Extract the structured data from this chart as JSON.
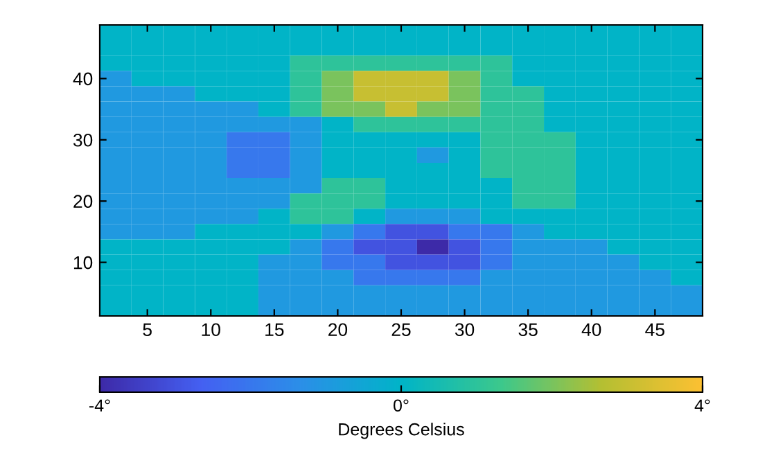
{
  "chart_data": {
    "type": "heatmap",
    "clabel": "Degrees Celsius",
    "categories": [
      null,
      "5",
      null,
      "10",
      null,
      "15",
      null,
      "20",
      null,
      "25",
      null,
      "30",
      null,
      "35",
      null,
      "40",
      null,
      "45",
      null
    ],
    "y_categories": [
      null,
      null,
      null,
      "40",
      null,
      null,
      null,
      "30",
      null,
      null,
      null,
      "20",
      null,
      null,
      null,
      "10",
      null,
      null,
      null
    ],
    "clim": [
      -4,
      4
    ],
    "cticks": [
      {
        "value": -4,
        "label": "-4°"
      },
      {
        "value": 0,
        "label": "0°"
      },
      {
        "value": 4,
        "label": "4°"
      }
    ],
    "cells": [
      [
        0,
        0,
        0,
        0,
        0,
        0,
        0,
        0,
        0,
        0,
        0,
        0,
        0,
        0,
        0,
        0,
        0,
        0,
        0
      ],
      [
        0,
        0,
        0,
        0,
        0,
        0,
        0,
        0,
        0,
        0,
        0,
        0,
        0,
        0,
        0,
        0,
        0,
        0,
        0
      ],
      [
        0,
        0,
        0,
        0,
        0,
        0,
        1,
        1,
        1,
        1,
        1,
        1,
        1,
        0,
        0,
        0,
        0,
        0,
        0
      ],
      [
        -1,
        0,
        0,
        0,
        0,
        0,
        1,
        2,
        3,
        3,
        3,
        2,
        1,
        0,
        0,
        0,
        0,
        0,
        0
      ],
      [
        -1,
        -1,
        -1,
        0,
        0,
        0,
        1,
        2,
        3,
        3,
        3,
        2,
        1,
        1,
        0,
        0,
        0,
        0,
        0
      ],
      [
        -1,
        -1,
        -1,
        -1,
        -1,
        0,
        1,
        2,
        2,
        3,
        2,
        2,
        1,
        1,
        0,
        0,
        0,
        0,
        0
      ],
      [
        -1,
        -1,
        -1,
        -1,
        -1,
        -1,
        -1,
        0,
        1,
        1,
        1,
        1,
        1,
        1,
        0,
        0,
        0,
        0,
        0
      ],
      [
        -1,
        -1,
        -1,
        -1,
        -2,
        -2,
        -1,
        0,
        0,
        0,
        0,
        0,
        1,
        1,
        1,
        0,
        0,
        0,
        0
      ],
      [
        -1,
        -1,
        -1,
        -1,
        -2,
        -2,
        -1,
        0,
        0,
        0,
        -1,
        0,
        1,
        1,
        1,
        0,
        0,
        0,
        0
      ],
      [
        -1,
        -1,
        -1,
        -1,
        -2,
        -2,
        -1,
        0,
        0,
        0,
        0,
        0,
        1,
        1,
        1,
        0,
        0,
        0,
        0
      ],
      [
        -1,
        -1,
        -1,
        -1,
        -1,
        -1,
        -1,
        1,
        1,
        0,
        0,
        0,
        0,
        1,
        1,
        0,
        0,
        0,
        0
      ],
      [
        -1,
        -1,
        -1,
        -1,
        -1,
        -1,
        1,
        1,
        1,
        0,
        0,
        0,
        0,
        1,
        1,
        0,
        0,
        0,
        0
      ],
      [
        -1,
        -1,
        -1,
        -1,
        -1,
        0,
        1,
        1,
        0,
        -1,
        -1,
        -1,
        0,
        0,
        0,
        0,
        0,
        0,
        0
      ],
      [
        -1,
        -1,
        -1,
        0,
        0,
        0,
        0,
        -1,
        -2,
        -3,
        -3,
        -2,
        -2,
        -1,
        0,
        0,
        0,
        0,
        0
      ],
      [
        0,
        0,
        0,
        0,
        0,
        0,
        -1,
        -2,
        -3,
        -3,
        -4,
        -3,
        -2,
        -1,
        -1,
        -1,
        0,
        0,
        0
      ],
      [
        0,
        0,
        0,
        0,
        0,
        -1,
        -1,
        -2,
        -2,
        -3,
        -3,
        -3,
        -2,
        -1,
        -1,
        -1,
        -1,
        0,
        0
      ],
      [
        0,
        0,
        0,
        0,
        0,
        -1,
        -1,
        -1,
        -2,
        -2,
        -2,
        -2,
        -1,
        -1,
        -1,
        -1,
        -1,
        -1,
        0
      ],
      [
        0,
        0,
        0,
        0,
        0,
        -1,
        -1,
        -1,
        -1,
        -1,
        -1,
        -1,
        -1,
        -1,
        -1,
        -1,
        -1,
        -1,
        -1
      ],
      [
        0,
        0,
        0,
        0,
        0,
        -1,
        -1,
        -1,
        -1,
        -1,
        -1,
        -1,
        -1,
        -1,
        -1,
        -1,
        -1,
        -1,
        -1
      ]
    ]
  }
}
